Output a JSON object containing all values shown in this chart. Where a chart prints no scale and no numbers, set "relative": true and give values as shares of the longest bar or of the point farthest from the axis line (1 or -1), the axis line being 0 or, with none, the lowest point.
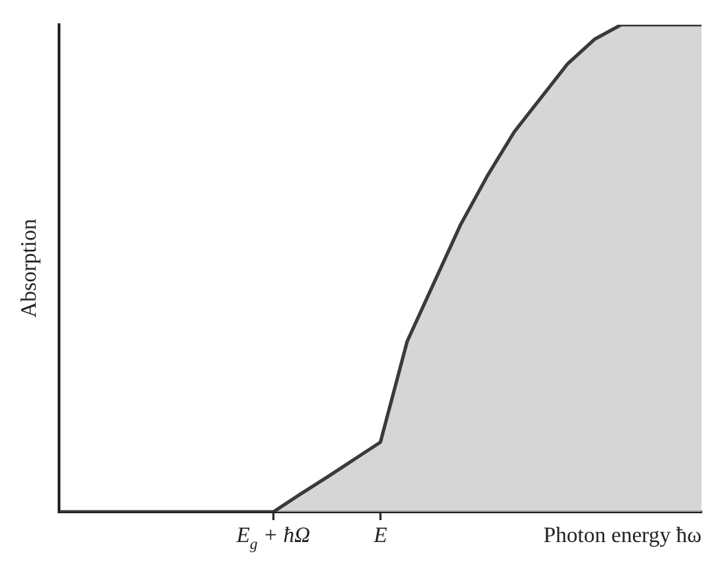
{
  "chart_data": {
    "type": "area",
    "relative": true,
    "xlabel": "Photon energy ħω",
    "ylabel": "Absorption",
    "categories": [
      null,
      null,
      null,
      null,
      null,
      null,
      null,
      null,
      "E$_{g}$ + ħΩ",
      null,
      null,
      null,
      "E",
      null,
      null,
      null,
      null,
      null,
      null,
      null,
      null,
      null,
      null,
      null,
      null
    ],
    "series": [
      {
        "color": "#3a3a3a",
        "values": [
          0,
          0,
          0,
          0,
          0,
          0,
          0,
          0,
          0,
          0.036,
          0.071,
          0.107,
          0.143,
          0.35,
          0.47,
          0.59,
          0.69,
          0.78,
          0.85,
          0.92,
          0.97,
          1,
          1,
          1,
          1
        ]
      }
    ],
    "grid": false,
    "legend": false
  }
}
